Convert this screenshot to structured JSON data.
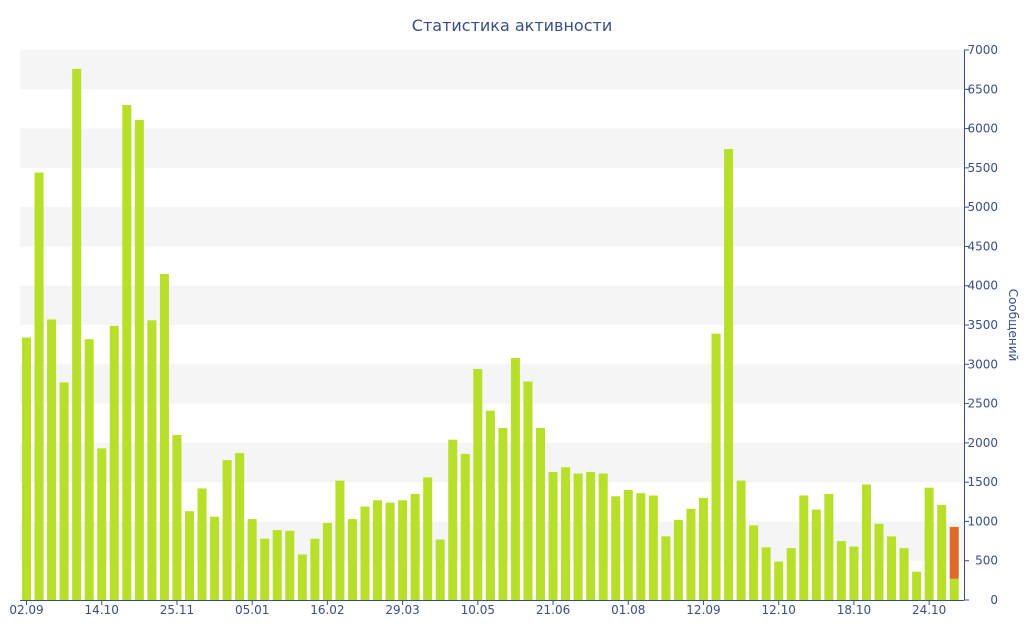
{
  "chart_data": {
    "type": "bar",
    "title": "Статистика активности",
    "xlabel": "",
    "ylabel": "Сообщений",
    "ylim": [
      0,
      7000
    ],
    "y_ticks": [
      0,
      500,
      1000,
      1500,
      2000,
      2500,
      3000,
      3500,
      4000,
      4500,
      5000,
      5500,
      6000,
      6500,
      7000
    ],
    "x_tick_labels": [
      {
        "index": 0,
        "label": "02.09"
      },
      {
        "index": 6,
        "label": "14.10"
      },
      {
        "index": 12,
        "label": "25.11"
      },
      {
        "index": 18,
        "label": "05.01"
      },
      {
        "index": 24,
        "label": "16.02"
      },
      {
        "index": 30,
        "label": "29.03"
      },
      {
        "index": 36,
        "label": "10.05"
      },
      {
        "index": 42,
        "label": "21.06"
      },
      {
        "index": 48,
        "label": "01.08"
      },
      {
        "index": 54,
        "label": "12.09"
      },
      {
        "index": 60,
        "label": "12.10"
      },
      {
        "index": 66,
        "label": "18.10"
      },
      {
        "index": 72,
        "label": "24.10"
      }
    ],
    "grid": true,
    "grid_style": "alternating-bands",
    "y_axis_side": "right",
    "colors": {
      "bar": "#b8e02a",
      "highlight": "#e06a2a",
      "text": "#3b4f86",
      "band": "#f5f5f5",
      "axis": "#3b4f86"
    },
    "series": [
      {
        "values": [
          3340,
          5440,
          3570,
          2770,
          6760,
          3320,
          1930,
          3490,
          6300,
          6110,
          3560,
          4150,
          2100,
          1130,
          1420,
          1060,
          1780,
          1870,
          1030,
          780,
          890,
          880,
          580,
          780,
          980,
          1520,
          1030,
          1190,
          1270,
          1240,
          1270,
          1350,
          1560,
          770,
          2040,
          1860,
          2940,
          2410,
          2190,
          3080,
          2780,
          2190,
          1630,
          1690,
          1610,
          1630,
          1610,
          1320,
          1400,
          1360,
          1330,
          810,
          1020,
          1160,
          1300,
          3390,
          5740,
          1520,
          950,
          670,
          490,
          660,
          1330,
          1150,
          1350,
          750,
          680,
          1470,
          970,
          810,
          660,
          360,
          1430,
          1210,
          270
        ]
      }
    ],
    "highlight_overlay": {
      "index": 74,
      "value": 930
    }
  }
}
